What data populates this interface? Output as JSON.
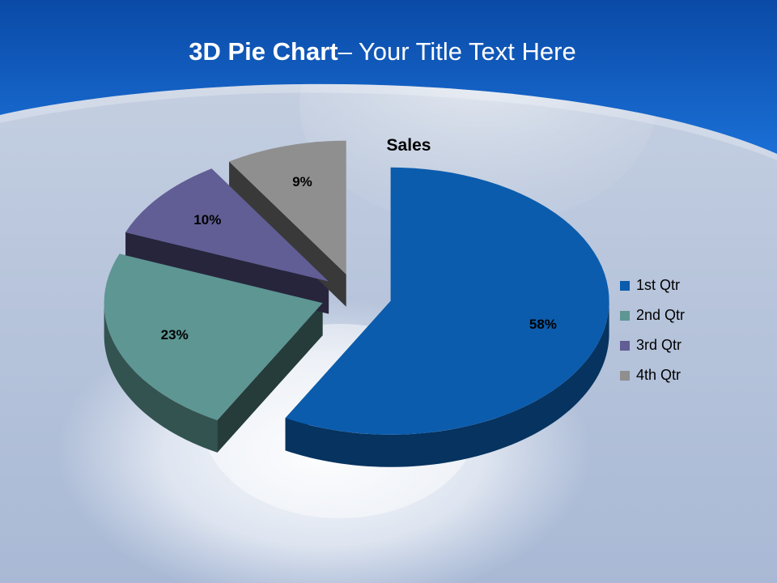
{
  "slide": {
    "title_bold": "3D Pie Chart",
    "title_rest": "– Your Title Text Here"
  },
  "chart_data": {
    "type": "pie",
    "style": "3d-exploded",
    "title": "Sales",
    "categories": [
      "1st Qtr",
      "2nd Qtr",
      "3rd Qtr",
      "4th Qtr"
    ],
    "values": [
      58,
      23,
      10,
      9
    ],
    "value_labels": [
      "58%",
      "23%",
      "10%",
      "9%"
    ],
    "colors": [
      "#0b5cad",
      "#5d9693",
      "#615d95",
      "#8f8f8f"
    ],
    "legend_position": "right"
  }
}
